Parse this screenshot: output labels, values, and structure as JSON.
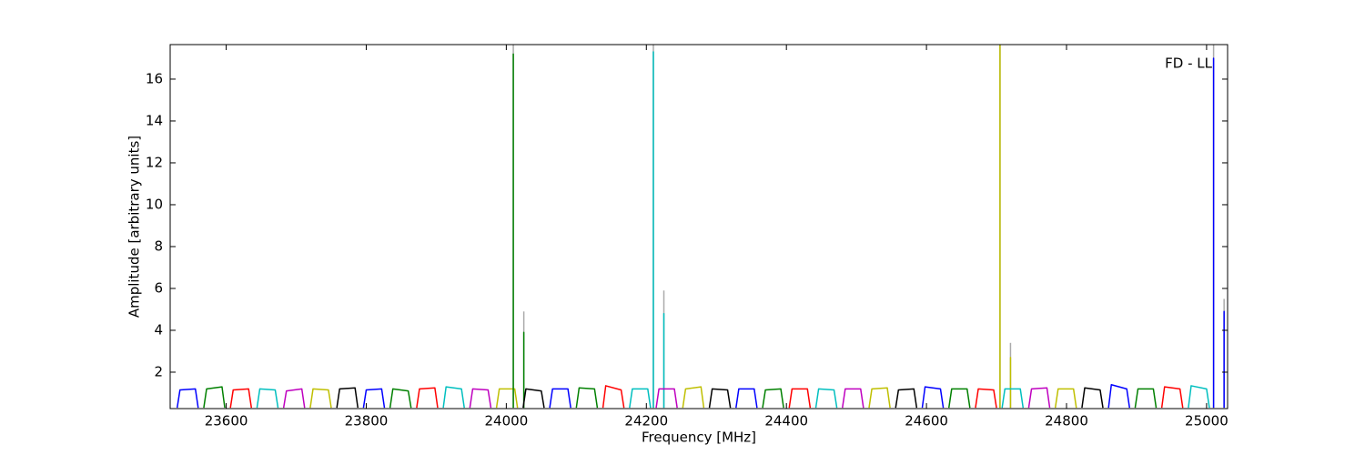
{
  "chart_data": {
    "type": "line",
    "annotation": "FD - LL",
    "x_label": "Frequency [MHz]",
    "y_label": "Amplitude [arbitrary units]",
    "xlim": [
      23520,
      25030
    ],
    "ylim": [
      0.26,
      17.65
    ],
    "xticks": [
      23600,
      23800,
      24000,
      24200,
      24400,
      24600,
      24800,
      25000
    ],
    "yticks": [
      2,
      4,
      6,
      8,
      10,
      12,
      14,
      16
    ],
    "grid": false,
    "series": [
      {
        "color": "#aaaaaa",
        "x": [
          24010,
          24010
        ],
        "values": [
          0.3,
          17.65
        ]
      },
      {
        "color": "#aaaaaa",
        "x": [
          24025,
          24025
        ],
        "values": [
          0.3,
          4.9
        ]
      },
      {
        "color": "#aaaaaa",
        "x": [
          24210,
          24210
        ],
        "values": [
          0.3,
          17.65
        ]
      },
      {
        "color": "#aaaaaa",
        "x": [
          24225,
          24225
        ],
        "values": [
          0.3,
          5.9
        ]
      },
      {
        "color": "#aaaaaa",
        "x": [
          24705,
          24705
        ],
        "values": [
          0.3,
          17.65
        ]
      },
      {
        "color": "#aaaaaa",
        "x": [
          24720,
          24720
        ],
        "values": [
          0.3,
          3.4
        ]
      },
      {
        "color": "#aaaaaa",
        "x": [
          25010,
          25010
        ],
        "values": [
          0.3,
          17.65
        ]
      },
      {
        "color": "#aaaaaa",
        "x": [
          25025,
          25025
        ],
        "values": [
          0.3,
          5.5
        ]
      },
      {
        "color": "#0000ff",
        "x": [
          23530,
          23534,
          23556,
          23560
        ],
        "values": [
          0.3,
          1.15,
          1.2,
          0.3
        ]
      },
      {
        "color": "#008000",
        "x": [
          23568,
          23572,
          23594,
          23598
        ],
        "values": [
          0.3,
          1.2,
          1.3,
          0.3
        ]
      },
      {
        "color": "#ff0000",
        "x": [
          23606,
          23610,
          23632,
          23636
        ],
        "values": [
          0.3,
          1.15,
          1.2,
          0.3
        ]
      },
      {
        "color": "#00bfbf",
        "x": [
          23644,
          23648,
          23670,
          23674
        ],
        "values": [
          0.3,
          1.2,
          1.15,
          0.3
        ]
      },
      {
        "color": "#bf00bf",
        "x": [
          23682,
          23686,
          23708,
          23712
        ],
        "values": [
          0.3,
          1.1,
          1.2,
          0.3
        ]
      },
      {
        "color": "#bfbf00",
        "x": [
          23720,
          23724,
          23746,
          23750
        ],
        "values": [
          0.3,
          1.2,
          1.15,
          0.3
        ]
      },
      {
        "color": "#000000",
        "x": [
          23758,
          23762,
          23784,
          23788
        ],
        "values": [
          0.3,
          1.2,
          1.25,
          0.3
        ]
      },
      {
        "color": "#0000ff",
        "x": [
          23796,
          23800,
          23822,
          23826
        ],
        "values": [
          0.3,
          1.15,
          1.2,
          0.3
        ]
      },
      {
        "color": "#008000",
        "x": [
          23834,
          23838,
          23860,
          23864
        ],
        "values": [
          0.3,
          1.2,
          1.1,
          0.3
        ]
      },
      {
        "color": "#ff0000",
        "x": [
          23872,
          23876,
          23898,
          23902
        ],
        "values": [
          0.3,
          1.2,
          1.25,
          0.3
        ]
      },
      {
        "color": "#00bfbf",
        "x": [
          23910,
          23914,
          23936,
          23940
        ],
        "values": [
          0.3,
          1.3,
          1.2,
          0.3
        ]
      },
      {
        "color": "#bf00bf",
        "x": [
          23948,
          23952,
          23974,
          23978
        ],
        "values": [
          0.3,
          1.2,
          1.15,
          0.3
        ]
      },
      {
        "color": "#bfbf00",
        "x": [
          23986,
          23990,
          24012,
          24016
        ],
        "values": [
          0.3,
          1.2,
          1.2,
          0.3
        ]
      },
      {
        "color": "#008000",
        "x": [
          24010,
          24010,
          24010
        ],
        "values": [
          0.3,
          17.2,
          0.3
        ]
      },
      {
        "color": "#008000",
        "x": [
          24025,
          24025,
          24025
        ],
        "values": [
          0.3,
          3.9,
          0.3
        ]
      },
      {
        "color": "#000000",
        "x": [
          24024,
          24028,
          24050,
          24054
        ],
        "values": [
          0.3,
          1.2,
          1.1,
          0.3
        ]
      },
      {
        "color": "#0000ff",
        "x": [
          24062,
          24066,
          24088,
          24092
        ],
        "values": [
          0.3,
          1.2,
          1.2,
          0.3
        ]
      },
      {
        "color": "#008000",
        "x": [
          24100,
          24104,
          24126,
          24130
        ],
        "values": [
          0.3,
          1.25,
          1.2,
          0.3
        ]
      },
      {
        "color": "#ff0000",
        "x": [
          24138,
          24142,
          24164,
          24168
        ],
        "values": [
          0.3,
          1.35,
          1.15,
          0.3
        ]
      },
      {
        "color": "#00bfbf",
        "x": [
          24176,
          24180,
          24202,
          24206
        ],
        "values": [
          0.3,
          1.2,
          1.2,
          0.3
        ]
      },
      {
        "color": "#00bfbf",
        "x": [
          24210,
          24210,
          24210
        ],
        "values": [
          0.3,
          17.3,
          0.3
        ]
      },
      {
        "color": "#00bfbf",
        "x": [
          24225,
          24225,
          24225
        ],
        "values": [
          0.3,
          4.8,
          0.3
        ]
      },
      {
        "color": "#bf00bf",
        "x": [
          24214,
          24218,
          24240,
          24244
        ],
        "values": [
          0.3,
          1.2,
          1.2,
          0.3
        ]
      },
      {
        "color": "#bfbf00",
        "x": [
          24252,
          24256,
          24278,
          24282
        ],
        "values": [
          0.3,
          1.2,
          1.3,
          0.3
        ]
      },
      {
        "color": "#000000",
        "x": [
          24290,
          24294,
          24316,
          24320
        ],
        "values": [
          0.3,
          1.2,
          1.15,
          0.3
        ]
      },
      {
        "color": "#0000ff",
        "x": [
          24328,
          24332,
          24354,
          24358
        ],
        "values": [
          0.3,
          1.2,
          1.2,
          0.3
        ]
      },
      {
        "color": "#008000",
        "x": [
          24366,
          24370,
          24392,
          24396
        ],
        "values": [
          0.3,
          1.15,
          1.2,
          0.3
        ]
      },
      {
        "color": "#ff0000",
        "x": [
          24404,
          24408,
          24430,
          24434
        ],
        "values": [
          0.3,
          1.2,
          1.2,
          0.3
        ]
      },
      {
        "color": "#00bfbf",
        "x": [
          24442,
          24446,
          24468,
          24472
        ],
        "values": [
          0.3,
          1.2,
          1.15,
          0.3
        ]
      },
      {
        "color": "#bf00bf",
        "x": [
          24480,
          24484,
          24506,
          24510
        ],
        "values": [
          0.3,
          1.2,
          1.2,
          0.3
        ]
      },
      {
        "color": "#bfbf00",
        "x": [
          24518,
          24522,
          24544,
          24548
        ],
        "values": [
          0.3,
          1.2,
          1.25,
          0.3
        ]
      },
      {
        "color": "#000000",
        "x": [
          24556,
          24560,
          24582,
          24586
        ],
        "values": [
          0.3,
          1.15,
          1.2,
          0.3
        ]
      },
      {
        "color": "#0000ff",
        "x": [
          24594,
          24598,
          24620,
          24624
        ],
        "values": [
          0.3,
          1.3,
          1.2,
          0.3
        ]
      },
      {
        "color": "#008000",
        "x": [
          24632,
          24636,
          24658,
          24662
        ],
        "values": [
          0.3,
          1.2,
          1.2,
          0.3
        ]
      },
      {
        "color": "#ff0000",
        "x": [
          24670,
          24674,
          24696,
          24700
        ],
        "values": [
          0.3,
          1.2,
          1.15,
          0.3
        ]
      },
      {
        "color": "#bfbf00",
        "x": [
          24705,
          24705,
          24705
        ],
        "values": [
          0.3,
          17.65,
          0.3
        ]
      },
      {
        "color": "#bfbf00",
        "x": [
          24720,
          24720,
          24720
        ],
        "values": [
          0.3,
          2.7,
          0.3
        ]
      },
      {
        "color": "#00bfbf",
        "x": [
          24708,
          24712,
          24734,
          24738
        ],
        "values": [
          0.3,
          1.2,
          1.2,
          0.3
        ]
      },
      {
        "color": "#bf00bf",
        "x": [
          24746,
          24750,
          24772,
          24776
        ],
        "values": [
          0.3,
          1.2,
          1.25,
          0.3
        ]
      },
      {
        "color": "#bfbf00",
        "x": [
          24784,
          24788,
          24810,
          24814
        ],
        "values": [
          0.3,
          1.2,
          1.2,
          0.3
        ]
      },
      {
        "color": "#000000",
        "x": [
          24822,
          24826,
          24848,
          24852
        ],
        "values": [
          0.3,
          1.25,
          1.15,
          0.3
        ]
      },
      {
        "color": "#0000ff",
        "x": [
          24860,
          24864,
          24886,
          24890
        ],
        "values": [
          0.3,
          1.4,
          1.2,
          0.3
        ]
      },
      {
        "color": "#008000",
        "x": [
          24898,
          24902,
          24924,
          24928
        ],
        "values": [
          0.3,
          1.2,
          1.2,
          0.3
        ]
      },
      {
        "color": "#ff0000",
        "x": [
          24936,
          24940,
          24962,
          24966
        ],
        "values": [
          0.3,
          1.3,
          1.2,
          0.3
        ]
      },
      {
        "color": "#00bfbf",
        "x": [
          24974,
          24978,
          25000,
          25004
        ],
        "values": [
          0.3,
          1.35,
          1.2,
          0.3
        ]
      },
      {
        "color": "#0000ff",
        "x": [
          25010,
          25010,
          25010
        ],
        "values": [
          0.3,
          17.0,
          0.3
        ]
      },
      {
        "color": "#0000ff",
        "x": [
          25025,
          25025,
          25025
        ],
        "values": [
          0.3,
          4.9,
          0.3
        ]
      }
    ]
  }
}
